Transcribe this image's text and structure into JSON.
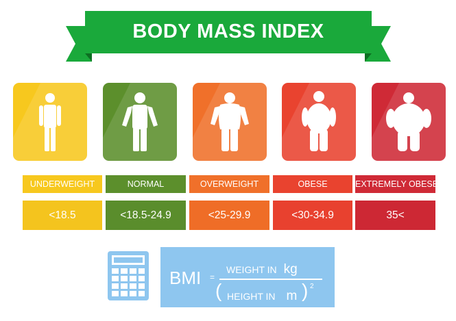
{
  "title": "BODY MASS INDEX",
  "categories": [
    {
      "label": "UNDERWEIGHT",
      "range": "<18.5",
      "tile_color": "#f7c81e",
      "label_color": "#f7c81e",
      "range_color": "#f4c41e"
    },
    {
      "label": "NORMAL",
      "range": "<18.5-24.9",
      "tile_color": "#5c8f2c",
      "label_color": "#5c8f2c",
      "range_color": "#5a8d2c"
    },
    {
      "label": "OVERWEIGHT",
      "range": "<25-29.9",
      "tile_color": "#f0702a",
      "label_color": "#f0702a",
      "range_color": "#ef6d27"
    },
    {
      "label": "OBESE",
      "range": "<30-34.9",
      "tile_color": "#e9432f",
      "label_color": "#e9432f",
      "range_color": "#e8412f"
    },
    {
      "label": "EXTREMELY OBESE",
      "range": "35<",
      "tile_color": "#cf2a36",
      "label_color": "#cf2a36",
      "range_color": "#cd2834"
    }
  ],
  "formula": {
    "lhs": "BMI",
    "equals": "=",
    "numerator": "WEIGHT IN",
    "numerator_unit": "kg",
    "paren_open": "(",
    "denominator": "HEIGHT IN",
    "denominator_unit": "m",
    "paren_close": ")",
    "exponent": "2"
  },
  "colors": {
    "ribbon": "#1aa93b",
    "ribbon_dark": "#128a2e",
    "formula_bg": "#8ec6ef",
    "calculator": "#8ec6ef"
  },
  "icons": [
    "calculator-icon",
    "person-underweight-icon",
    "person-normal-icon",
    "person-overweight-icon",
    "person-obese-icon",
    "person-extremely-obese-icon"
  ]
}
